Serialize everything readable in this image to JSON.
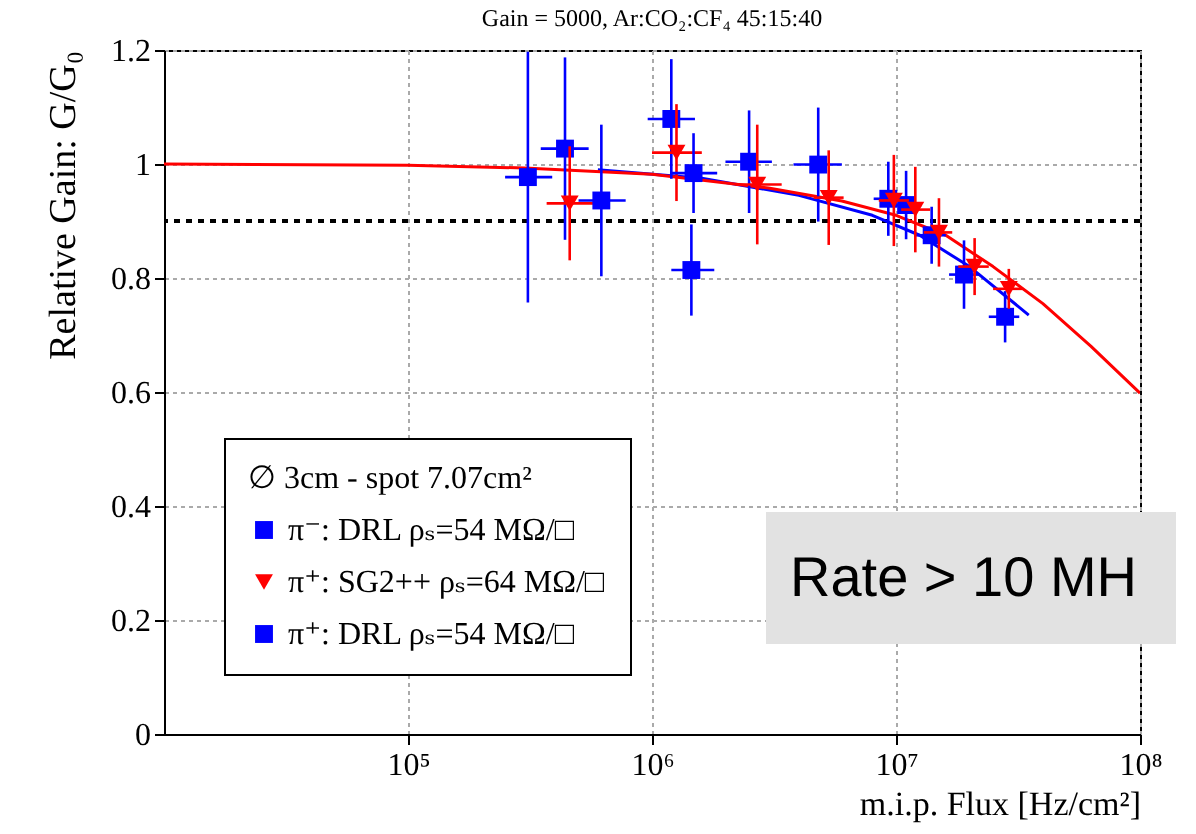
{
  "chart_data": {
    "type": "scatter",
    "title": "Gain = 5000, Ar:CO₂:CF₄ 45:15:40",
    "xlabel": "m.i.p. Flux [Hz/cm²]",
    "ylabel": "Relative Gain: G/G₀",
    "legend_title": "∅ 3cm  - spot 7.07cm²",
    "annotations": [
      "Rate > 10 MH"
    ],
    "log": "x",
    "xlim": [
      10000,
      100000000
    ],
    "xticks": [
      {
        "value": 100000,
        "label": "10⁵"
      },
      {
        "value": 1000000,
        "label": "10⁶"
      },
      {
        "value": 10000000,
        "label": "10⁷"
      },
      {
        "value": 100000000,
        "label": "10⁸"
      }
    ],
    "ylim": [
      0,
      1.2
    ],
    "yticks": [
      0,
      0.2,
      0.4,
      0.6,
      0.8,
      1,
      1.2
    ],
    "grid": true,
    "legend": "bottom left",
    "ref_lines": [
      {
        "axis": "y",
        "value": 0.9,
        "color": "#000000",
        "line_style": "dotted"
      }
    ],
    "series": [
      {
        "name": "π⁻: DRL    ρₛ=54 MΩ/□",
        "color": "#0000ff",
        "marker": "square",
        "x": [
          310000,
          620000,
          1480000,
          1450000
        ],
        "values": [
          0.977,
          0.936,
          0.984,
          0.814
        ],
        "errors": [
          0.22,
          0.133,
          0.07,
          0.08
        ],
        "xerrors": [
          [
            250000,
            390000
          ],
          [
            500000,
            780000
          ],
          [
            1200000,
            1850000
          ],
          [
            1200000,
            1800000
          ]
        ]
      },
      {
        "name": "π⁺: SG2++ ρₛ=64 MΩ/□",
        "color": "#ff0000",
        "marker": "triangle",
        "x": [
          460000,
          1260000,
          2700000,
          5300000,
          9800000,
          12000000,
          15000000,
          21000000,
          29000000
        ],
        "values": [
          0.931,
          1.02,
          0.964,
          0.941,
          0.936,
          0.92,
          0.88,
          0.82,
          0.781
        ],
        "errors": [
          0.1,
          0.085,
          0.105,
          0.083,
          0.08,
          0.075,
          0.06,
          0.05,
          0.035
        ],
        "xerrors": [
          [
            370000,
            580000
          ],
          [
            1000000,
            1600000
          ],
          [
            2200000,
            3400000
          ],
          [
            4600000,
            6100000
          ],
          [
            8500000,
            11300000
          ],
          [
            10500000,
            13800000
          ],
          [
            13000000,
            17000000
          ],
          [
            18000000,
            24000000
          ],
          [
            25000000,
            33000000
          ]
        ]
      },
      {
        "name": "π⁺: DRL    ρₛ=54 MΩ/□",
        "color": "#0000ff",
        "marker": "square",
        "x": [
          440000,
          1200000,
          2500000,
          4800000,
          9300000,
          11000000,
          14000000,
          19000000,
          28000000
        ],
        "values": [
          1.027,
          1.079,
          1.004,
          0.999,
          0.939,
          0.928,
          0.875,
          0.806,
          0.732
        ],
        "errors": [
          0.16,
          0.105,
          0.09,
          0.1,
          0.065,
          0.06,
          0.05,
          0.06,
          0.045
        ],
        "xerrors": [
          [
            350000,
            550000
          ],
          [
            960000,
            1500000
          ],
          [
            2000000,
            3100000
          ],
          [
            3800000,
            6000000
          ],
          [
            8100000,
            10700000
          ],
          [
            9600000,
            12700000
          ],
          [
            12000000,
            16000000
          ],
          [
            16500000,
            22000000
          ],
          [
            24000000,
            32000000
          ]
        ]
      },
      {
        "type": "line",
        "color": "#ff0000",
        "x": [
          10000,
          100000,
          300000,
          1000000,
          3000000,
          6000000,
          10000000,
          16000000,
          25000000,
          40000000,
          63000000,
          100000000
        ],
        "values": [
          1.0,
          0.998,
          0.993,
          0.982,
          0.958,
          0.935,
          0.91,
          0.875,
          0.82,
          0.755,
          0.68,
          0.598
        ]
      },
      {
        "type": "line",
        "color": "#0000ff",
        "x": [
          600000,
          1600000,
          4000000,
          8000000,
          12500000,
          20000000,
          35000000
        ],
        "values": [
          0.99,
          0.975,
          0.945,
          0.91,
          0.875,
          0.82,
          0.735
        ]
      }
    ]
  }
}
